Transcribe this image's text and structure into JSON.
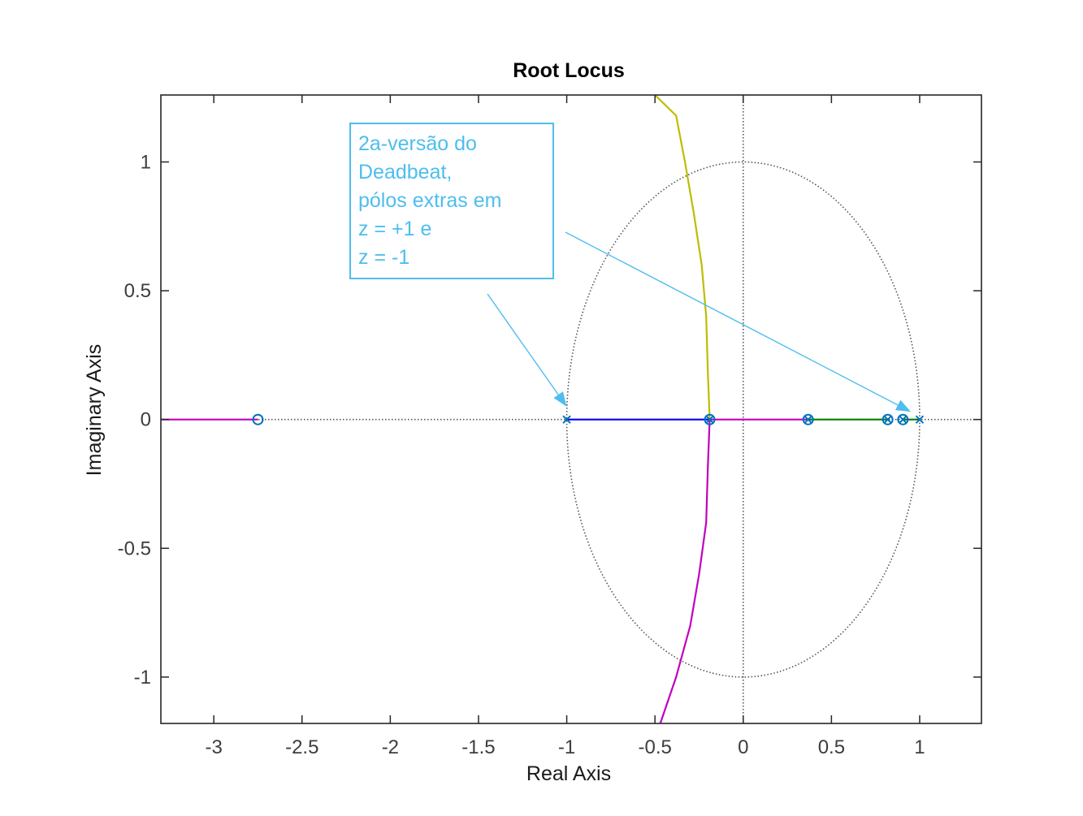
{
  "chart_data": {
    "type": "scatter",
    "title": "Root Locus",
    "xlabel": "Real Axis",
    "ylabel": "Imaginary Axis",
    "xlim": [
      -3.3,
      1.35
    ],
    "ylim": [
      -1.18,
      1.26
    ],
    "xticks": [
      -3,
      -2.5,
      -2,
      -1.5,
      -1,
      -0.5,
      0,
      0.5,
      1
    ],
    "xtick_labels": [
      "-3",
      "-2.5",
      "-2",
      "-1.5",
      "-1",
      "-0.5",
      "0",
      "0.5",
      "1"
    ],
    "yticks": [
      -1,
      -0.5,
      0,
      0.5,
      1
    ],
    "ytick_labels": [
      "-1",
      "-0.5",
      "0",
      "0.5",
      "1"
    ],
    "grid": false,
    "unit_circle": true,
    "colors": {
      "blue": "#0000ff",
      "green": "#008000",
      "magenta": "#c000c0",
      "olive": "#bdbd00",
      "marker": "#0072bd",
      "annotation": "#4dbeee",
      "guide": "#555555"
    },
    "poles": [
      {
        "x": -1.0,
        "y": 0
      },
      {
        "x": -0.19,
        "y": 0
      },
      {
        "x": 0.368,
        "y": 0
      },
      {
        "x": 0.819,
        "y": 0
      },
      {
        "x": 0.905,
        "y": 0
      },
      {
        "x": 1.0,
        "y": 0
      }
    ],
    "zeros": [
      {
        "x": -2.75,
        "y": 0
      },
      {
        "x": -0.19,
        "y": 0
      },
      {
        "x": 0.368,
        "y": 0
      },
      {
        "x": 0.819,
        "y": 0
      },
      {
        "x": 0.905,
        "y": 0
      }
    ],
    "branches": [
      {
        "color": "blue",
        "points": [
          [
            -1.0,
            0
          ],
          [
            -0.19,
            0
          ]
        ]
      },
      {
        "color": "magenta",
        "points": [
          [
            -0.19,
            0
          ],
          [
            0.368,
            0
          ]
        ]
      },
      {
        "color": "green",
        "points": [
          [
            0.368,
            0
          ],
          [
            0.819,
            0
          ]
        ]
      },
      {
        "color": "green",
        "points": [
          [
            0.905,
            0
          ],
          [
            1.0,
            0
          ]
        ]
      },
      {
        "color": "magenta",
        "points": [
          [
            -3.3,
            0
          ],
          [
            -2.75,
            0
          ]
        ]
      },
      {
        "color": "olive",
        "points": [
          [
            -0.19,
            0
          ],
          [
            -0.2,
            0.18
          ],
          [
            -0.21,
            0.4
          ],
          [
            -0.235,
            0.6
          ],
          [
            -0.28,
            0.8
          ],
          [
            -0.33,
            1.0
          ],
          [
            -0.38,
            1.18
          ],
          [
            -0.5,
            1.26
          ]
        ]
      },
      {
        "color": "magenta",
        "points": [
          [
            -0.19,
            0
          ],
          [
            -0.2,
            -0.18
          ],
          [
            -0.21,
            -0.4
          ],
          [
            -0.25,
            -0.6
          ],
          [
            -0.3,
            -0.8
          ],
          [
            -0.38,
            -1.0
          ],
          [
            -0.47,
            -1.18
          ]
        ]
      }
    ],
    "annotation": {
      "lines": [
        "2a-versão do",
        "Deadbeat,",
        "pólos extras em",
        "z = +1 e",
        "z = -1"
      ],
      "arrow_targets": [
        {
          "x": -1.0,
          "y": 0.05
        },
        {
          "x": 0.95,
          "y": 0.03
        }
      ]
    }
  }
}
